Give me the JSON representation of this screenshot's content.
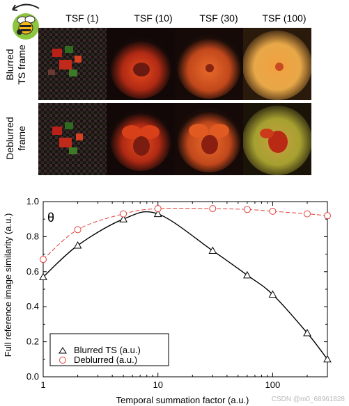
{
  "panel_top": {
    "column_labels": [
      "TSF (1)",
      "TSF (10)",
      "TSF (30)",
      "TSF (100)"
    ],
    "row_labels": [
      {
        "line1": "Blurred",
        "line2": "TS frame"
      },
      {
        "line1": "Deblurred",
        "line2": "frame"
      }
    ],
    "bee_icon": "bee-with-rotation-arrow-icon"
  },
  "chart_data": {
    "type": "line",
    "annotation": "θ",
    "xlabel": "Temporal summation factor (a.u.)",
    "ylabel": "Full reference image similarity (a.u.)",
    "xscale": "log",
    "xlim": [
      1,
      300
    ],
    "ylim": [
      0.0,
      1.0
    ],
    "x_ticks": [
      "1",
      "10",
      "100"
    ],
    "y_ticks": [
      "0.0",
      "0.2",
      "0.4",
      "0.6",
      "0.8",
      "1.0"
    ],
    "legend_position": "bottom-left",
    "series": [
      {
        "name": "Blurred TS (a.u.)",
        "marker": "triangle",
        "color": "#000000",
        "x": [
          1,
          2,
          5,
          10,
          30,
          60,
          100,
          200,
          300
        ],
        "y": [
          0.57,
          0.75,
          0.9,
          0.93,
          0.72,
          0.58,
          0.47,
          0.25,
          0.1
        ]
      },
      {
        "name": "Deblurred (a.u.)",
        "marker": "circle",
        "color": "#e0403a",
        "x": [
          1,
          2,
          5,
          10,
          30,
          60,
          100,
          200,
          300
        ],
        "y": [
          0.67,
          0.84,
          0.93,
          0.96,
          0.96,
          0.955,
          0.945,
          0.93,
          0.92
        ]
      }
    ]
  },
  "watermark": "CSDN @m0_68961828"
}
